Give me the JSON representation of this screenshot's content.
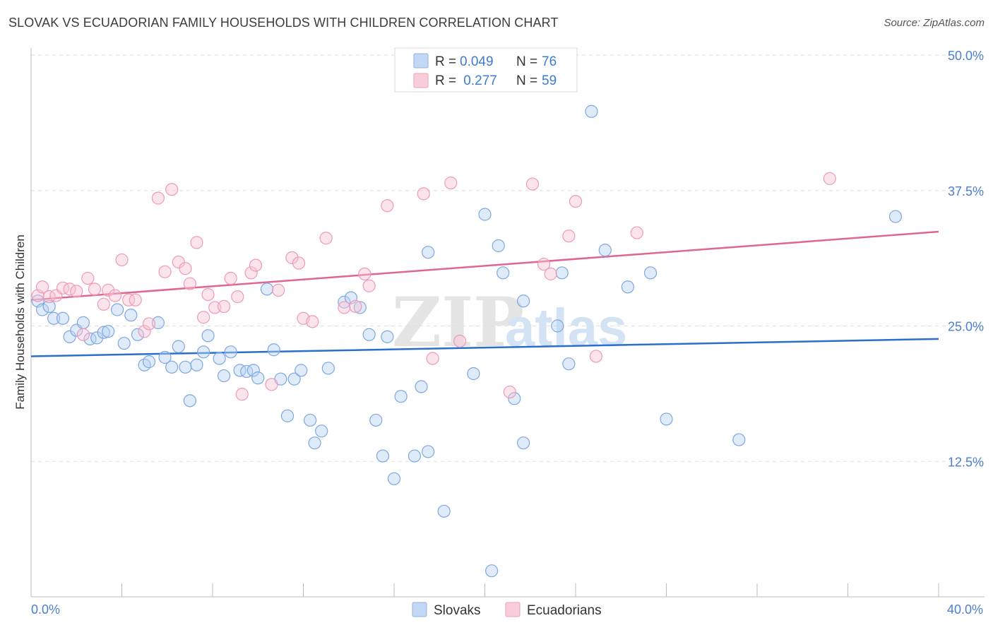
{
  "header": {
    "title": "SLOVAK VS ECUADORIAN FAMILY HOUSEHOLDS WITH CHILDREN CORRELATION CHART",
    "source": "Source: ZipAtlas.com"
  },
  "watermark": {
    "part1": "ZIP",
    "part2": "atlas"
  },
  "legend": {
    "rows": [
      {
        "r_label": "R = ",
        "r_value": "0.049",
        "n_label": "N = ",
        "n_value": "76",
        "color": "#a9c7ef"
      },
      {
        "r_label": "R = ",
        "r_value": " 0.277",
        "n_label": "N = ",
        "n_value": "59",
        "color": "#f5b6c9"
      }
    ]
  },
  "bottom_legend": [
    {
      "label": "Slovaks",
      "color": "#a9c7ef"
    },
    {
      "label": "Ecuadorians",
      "color": "#f5b6c9"
    }
  ],
  "chart_data": {
    "type": "scatter",
    "title": "SLOVAK VS ECUADORIAN FAMILY HOUSEHOLDS WITH CHILDREN CORRELATION CHART",
    "ylabel": "Family Households with Children",
    "xlabel": "",
    "xlim": [
      0,
      40
    ],
    "ylim": [
      0,
      50
    ],
    "x_tick_labels": [
      "0.0%",
      "40.0%"
    ],
    "y_ticks": [
      12.5,
      25.0,
      37.5,
      50.0
    ],
    "y_tick_labels": [
      "12.5%",
      "25.0%",
      "37.5%",
      "50.0%"
    ],
    "grid": true,
    "legend_position": "top-center",
    "colors": {
      "slovaks": "#6f9fdf",
      "slovaks_line": "#2a6fce",
      "ecuadorians": "#ec8fb0",
      "ecuadorians_line": "#e06595"
    },
    "series": [
      {
        "name": "Slovaks",
        "trend": {
          "x": [
            0,
            40
          ],
          "y": [
            22.2,
            23.8
          ]
        },
        "points": [
          [
            0.3,
            27.3
          ],
          [
            0.5,
            26.5
          ],
          [
            0.8,
            26.8
          ],
          [
            1.0,
            25.7
          ],
          [
            1.4,
            25.7
          ],
          [
            1.7,
            24.0
          ],
          [
            2.0,
            24.6
          ],
          [
            2.3,
            25.3
          ],
          [
            2.6,
            23.8
          ],
          [
            2.9,
            23.9
          ],
          [
            3.2,
            24.4
          ],
          [
            3.4,
            24.5
          ],
          [
            3.8,
            26.5
          ],
          [
            4.1,
            23.4
          ],
          [
            4.4,
            26.0
          ],
          [
            4.7,
            24.2
          ],
          [
            5.0,
            21.4
          ],
          [
            5.2,
            21.7
          ],
          [
            5.6,
            25.3
          ],
          [
            5.9,
            22.1
          ],
          [
            6.2,
            21.2
          ],
          [
            6.5,
            23.1
          ],
          [
            6.8,
            21.2
          ],
          [
            7.0,
            18.1
          ],
          [
            7.3,
            21.4
          ],
          [
            7.6,
            22.6
          ],
          [
            7.8,
            24.1
          ],
          [
            8.3,
            22.0
          ],
          [
            8.5,
            20.4
          ],
          [
            8.8,
            22.6
          ],
          [
            9.2,
            20.9
          ],
          [
            9.5,
            20.8
          ],
          [
            9.8,
            20.9
          ],
          [
            10.0,
            20.2
          ],
          [
            10.4,
            28.4
          ],
          [
            10.7,
            22.8
          ],
          [
            11.0,
            20.1
          ],
          [
            11.3,
            16.7
          ],
          [
            11.6,
            20.1
          ],
          [
            11.9,
            20.9
          ],
          [
            12.3,
            16.3
          ],
          [
            12.5,
            14.2
          ],
          [
            12.8,
            15.3
          ],
          [
            13.1,
            21.1
          ],
          [
            13.8,
            27.2
          ],
          [
            14.1,
            27.6
          ],
          [
            14.5,
            26.7
          ],
          [
            14.9,
            24.2
          ],
          [
            15.2,
            16.3
          ],
          [
            15.5,
            13.0
          ],
          [
            15.7,
            24.0
          ],
          [
            16.0,
            10.9
          ],
          [
            16.3,
            18.5
          ],
          [
            16.9,
            13.0
          ],
          [
            17.2,
            19.4
          ],
          [
            17.5,
            13.4
          ],
          [
            17.5,
            31.8
          ],
          [
            18.2,
            7.9
          ],
          [
            19.5,
            20.6
          ],
          [
            20.0,
            35.3
          ],
          [
            20.3,
            2.4
          ],
          [
            20.6,
            32.4
          ],
          [
            20.8,
            29.9
          ],
          [
            21.3,
            18.3
          ],
          [
            21.7,
            14.2
          ],
          [
            21.7,
            27.3
          ],
          [
            23.2,
            25.0
          ],
          [
            23.4,
            29.9
          ],
          [
            23.7,
            21.5
          ],
          [
            24.7,
            44.8
          ],
          [
            25.3,
            32.0
          ],
          [
            26.3,
            28.6
          ],
          [
            27.3,
            29.9
          ],
          [
            28.0,
            16.4
          ],
          [
            31.2,
            14.5
          ],
          [
            38.1,
            35.1
          ]
        ]
      },
      {
        "name": "Ecuadorians",
        "trend": {
          "x": [
            0,
            40
          ],
          "y": [
            27.4,
            33.7
          ]
        },
        "points": [
          [
            0.3,
            27.8
          ],
          [
            0.5,
            28.6
          ],
          [
            0.8,
            27.7
          ],
          [
            1.1,
            27.8
          ],
          [
            1.4,
            28.5
          ],
          [
            1.7,
            28.4
          ],
          [
            2.0,
            28.2
          ],
          [
            2.3,
            24.2
          ],
          [
            2.5,
            29.4
          ],
          [
            2.8,
            28.4
          ],
          [
            3.2,
            27.0
          ],
          [
            3.4,
            28.3
          ],
          [
            3.7,
            27.8
          ],
          [
            4.0,
            31.1
          ],
          [
            4.3,
            27.4
          ],
          [
            4.6,
            27.4
          ],
          [
            5.0,
            24.5
          ],
          [
            5.2,
            25.2
          ],
          [
            5.6,
            36.8
          ],
          [
            5.9,
            30.0
          ],
          [
            6.2,
            37.6
          ],
          [
            6.5,
            30.9
          ],
          [
            6.8,
            30.3
          ],
          [
            7.0,
            28.9
          ],
          [
            7.3,
            32.7
          ],
          [
            7.6,
            25.8
          ],
          [
            7.8,
            27.9
          ],
          [
            8.1,
            26.7
          ],
          [
            8.5,
            26.8
          ],
          [
            8.8,
            29.4
          ],
          [
            9.1,
            27.7
          ],
          [
            9.3,
            18.7
          ],
          [
            9.7,
            29.9
          ],
          [
            9.9,
            30.6
          ],
          [
            10.6,
            19.6
          ],
          [
            10.9,
            28.3
          ],
          [
            11.5,
            31.3
          ],
          [
            11.8,
            30.8
          ],
          [
            12.0,
            25.7
          ],
          [
            12.4,
            25.4
          ],
          [
            13.0,
            33.1
          ],
          [
            13.8,
            26.7
          ],
          [
            14.3,
            26.8
          ],
          [
            14.7,
            29.8
          ],
          [
            14.9,
            28.7
          ],
          [
            15.7,
            36.1
          ],
          [
            17.3,
            37.2
          ],
          [
            17.7,
            22.0
          ],
          [
            18.5,
            38.2
          ],
          [
            18.9,
            23.6
          ],
          [
            21.1,
            18.9
          ],
          [
            22.1,
            38.1
          ],
          [
            22.6,
            30.7
          ],
          [
            22.9,
            29.8
          ],
          [
            23.7,
            33.3
          ],
          [
            24.0,
            36.5
          ],
          [
            24.9,
            22.2
          ],
          [
            26.7,
            33.6
          ],
          [
            35.2,
            38.6
          ]
        ]
      }
    ]
  }
}
